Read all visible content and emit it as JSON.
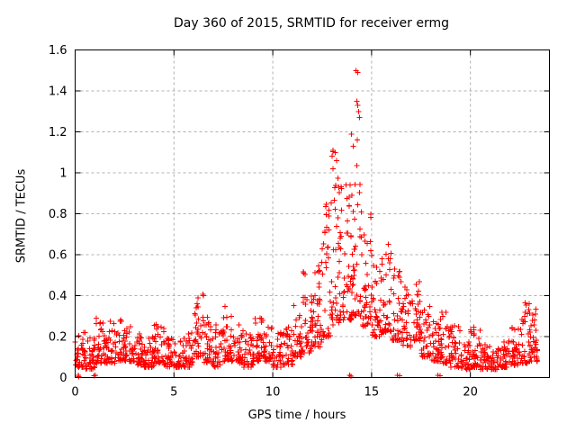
{
  "window": {
    "background": "#ffffff"
  },
  "colors": {
    "marker": "#ff0000",
    "grid": "#b0b0b0",
    "border": "#000000",
    "text": "#000000",
    "background": "#ffffff"
  },
  "chart_data": {
    "type": "scatter",
    "title": "Day 360 of 2015, SRMTID for receiver ermg",
    "xlabel": "GPS time / hours",
    "ylabel": "SRMTID / TECUs",
    "xlim": [
      0,
      24
    ],
    "ylim": [
      0,
      1.6
    ],
    "x_ticks": [
      0,
      5,
      10,
      15,
      20
    ],
    "x_tick_labels": [
      "0",
      "5",
      "10",
      "15",
      "20"
    ],
    "y_ticks": [
      0,
      0.2,
      0.4,
      0.6,
      0.8,
      1.0,
      1.2,
      1.4,
      1.6
    ],
    "y_tick_labels": [
      "0",
      "0.2",
      "0.4",
      "0.6",
      "0.8",
      "1",
      "1.2",
      "1.4",
      "1.6"
    ],
    "grid": "dashed",
    "legend": "none",
    "marker": "plus",
    "series_color": "#ff0000",
    "seed": 20151226,
    "density_bins": [
      [
        0.0,
        0.5,
        0.05,
        0.22,
        36
      ],
      [
        0.5,
        1.0,
        0.04,
        0.2,
        34
      ],
      [
        1.0,
        1.5,
        0.07,
        0.31,
        36
      ],
      [
        1.5,
        2.0,
        0.07,
        0.28,
        36
      ],
      [
        2.0,
        2.5,
        0.08,
        0.3,
        36
      ],
      [
        2.5,
        3.0,
        0.08,
        0.25,
        34
      ],
      [
        3.0,
        3.5,
        0.06,
        0.22,
        34
      ],
      [
        3.5,
        4.0,
        0.05,
        0.2,
        34
      ],
      [
        4.0,
        4.5,
        0.07,
        0.29,
        36
      ],
      [
        4.5,
        5.0,
        0.05,
        0.2,
        34
      ],
      [
        5.0,
        5.5,
        0.05,
        0.18,
        32
      ],
      [
        5.5,
        6.0,
        0.05,
        0.22,
        34
      ],
      [
        6.0,
        6.5,
        0.1,
        0.42,
        38
      ],
      [
        6.5,
        7.0,
        0.07,
        0.3,
        34
      ],
      [
        7.0,
        7.5,
        0.05,
        0.26,
        34
      ],
      [
        7.5,
        8.0,
        0.08,
        0.35,
        36
      ],
      [
        8.0,
        8.5,
        0.07,
        0.28,
        34
      ],
      [
        8.5,
        9.0,
        0.05,
        0.22,
        32
      ],
      [
        9.0,
        9.5,
        0.08,
        0.3,
        34
      ],
      [
        9.5,
        10.0,
        0.08,
        0.28,
        34
      ],
      [
        10.0,
        10.5,
        0.05,
        0.22,
        32
      ],
      [
        10.5,
        11.0,
        0.06,
        0.25,
        34
      ],
      [
        11.0,
        11.5,
        0.1,
        0.36,
        36
      ],
      [
        11.5,
        12.0,
        0.12,
        0.55,
        40
      ],
      [
        12.0,
        12.5,
        0.15,
        0.62,
        42
      ],
      [
        12.5,
        13.0,
        0.2,
        0.9,
        42
      ],
      [
        13.0,
        13.5,
        0.25,
        1.12,
        44
      ],
      [
        13.5,
        14.0,
        0.28,
        0.95,
        42
      ],
      [
        14.0,
        14.5,
        0.3,
        1.1,
        42
      ],
      [
        14.5,
        15.0,
        0.25,
        0.8,
        40
      ],
      [
        15.0,
        15.5,
        0.2,
        0.62,
        38
      ],
      [
        15.5,
        16.0,
        0.22,
        0.66,
        38
      ],
      [
        16.0,
        16.5,
        0.18,
        0.55,
        36
      ],
      [
        16.5,
        17.0,
        0.15,
        0.46,
        34
      ],
      [
        17.0,
        17.5,
        0.18,
        0.47,
        36
      ],
      [
        17.5,
        18.0,
        0.1,
        0.36,
        34
      ],
      [
        18.0,
        18.5,
        0.08,
        0.3,
        34
      ],
      [
        18.5,
        19.0,
        0.07,
        0.35,
        34
      ],
      [
        19.0,
        19.5,
        0.05,
        0.27,
        34
      ],
      [
        19.5,
        20.0,
        0.04,
        0.18,
        32
      ],
      [
        20.0,
        20.5,
        0.05,
        0.28,
        34
      ],
      [
        20.5,
        21.0,
        0.04,
        0.16,
        32
      ],
      [
        21.0,
        21.5,
        0.04,
        0.15,
        32
      ],
      [
        21.5,
        22.0,
        0.05,
        0.2,
        32
      ],
      [
        22.0,
        22.5,
        0.06,
        0.25,
        34
      ],
      [
        22.5,
        23.0,
        0.07,
        0.37,
        34
      ],
      [
        23.0,
        23.4,
        0.08,
        0.35,
        36
      ]
    ],
    "peak_outliers": [
      [
        14.22,
        1.5
      ],
      [
        14.3,
        1.49
      ],
      [
        14.25,
        1.35
      ],
      [
        14.31,
        1.33
      ],
      [
        14.34,
        1.3
      ],
      [
        14.38,
        1.27
      ],
      [
        14.28,
        1.16
      ],
      [
        13.98,
        1.19
      ],
      [
        14.08,
        1.13
      ],
      [
        13.15,
        1.1
      ],
      [
        13.22,
        1.06
      ],
      [
        13.05,
        1.02
      ]
    ],
    "near_zero_points": [
      [
        0.15,
        0.01
      ],
      [
        0.18,
        0.005
      ],
      [
        0.95,
        0.008
      ],
      [
        1.02,
        0.012
      ],
      [
        13.88,
        0.01
      ],
      [
        13.95,
        0.006
      ],
      [
        16.3,
        0.01
      ],
      [
        16.42,
        0.008
      ],
      [
        18.35,
        0.012
      ],
      [
        18.46,
        0.008
      ]
    ]
  }
}
